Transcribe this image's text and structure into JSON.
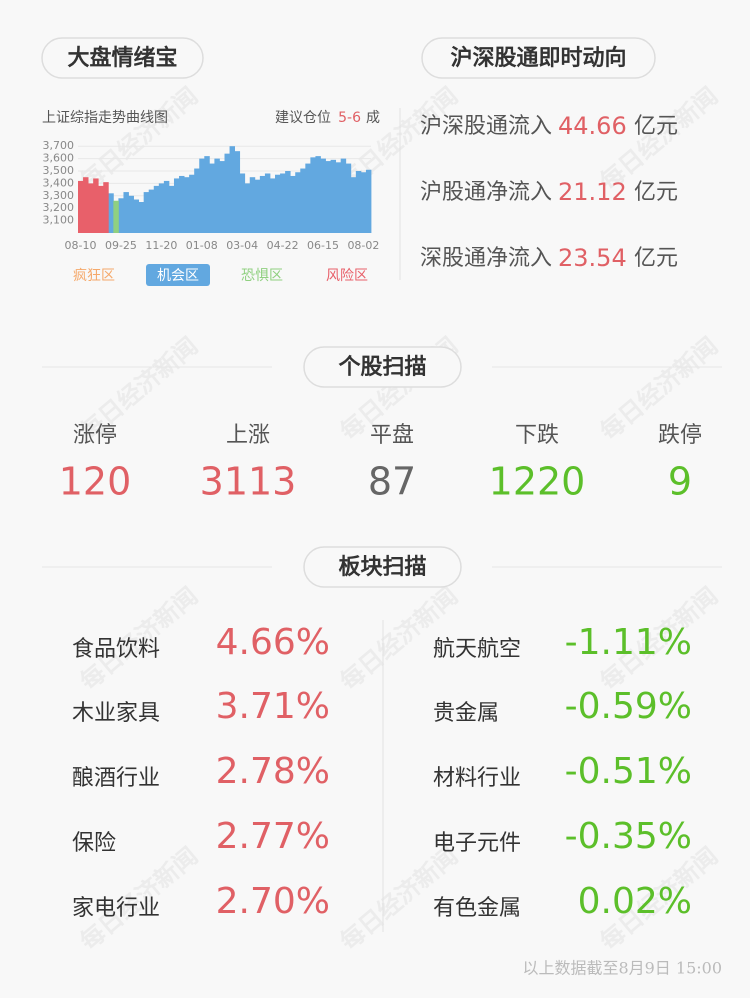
{
  "tabs": {
    "left": "大盘情绪宝",
    "right": "沪深股通即时动向"
  },
  "chart_data": {
    "type": "bar",
    "title": "上证综指走势曲线图",
    "suggestion": {
      "label": "建议仓位",
      "value": "5-6",
      "unit": "成"
    },
    "categories": [
      "08-10",
      null,
      null,
      null,
      null,
      null,
      null,
      null,
      "09-25",
      null,
      null,
      null,
      null,
      null,
      null,
      null,
      "11-20",
      null,
      null,
      null,
      null,
      null,
      null,
      null,
      "01-08",
      null,
      null,
      null,
      null,
      null,
      null,
      null,
      "03-04",
      null,
      null,
      null,
      null,
      null,
      null,
      null,
      "04-22",
      null,
      null,
      null,
      null,
      null,
      null,
      null,
      "06-15",
      null,
      null,
      null,
      null,
      null,
      null,
      null,
      "08-02",
      null
    ],
    "series": [
      {
        "name": "疯狂区",
        "color": "#f5a96b",
        "values": [
          null,
          null,
          null,
          null,
          null,
          null,
          null,
          null,
          null,
          null,
          null,
          null,
          null,
          null,
          null,
          null,
          null,
          null,
          null,
          null,
          null,
          null,
          null,
          null,
          null,
          null,
          null,
          null,
          null,
          null,
          null,
          null,
          null,
          null,
          null,
          null,
          null,
          null,
          null,
          null,
          null,
          null,
          null,
          null,
          null,
          null,
          null,
          null,
          null,
          null,
          null,
          null,
          null,
          null,
          null,
          null,
          null,
          null
        ]
      },
      {
        "name": "机会区",
        "color": "#62a8e0",
        "highlight": true,
        "values": [
          null,
          null,
          null,
          null,
          null,
          null,
          3320,
          null,
          3280,
          3330,
          3300,
          3270,
          3250,
          3330,
          3350,
          3380,
          3400,
          3420,
          3380,
          3440,
          3460,
          3450,
          3470,
          3520,
          3600,
          3620,
          3560,
          3600,
          3580,
          3640,
          3700,
          3660,
          3480,
          3400,
          3450,
          3430,
          3460,
          3480,
          3440,
          3470,
          3480,
          3500,
          3460,
          3490,
          3520,
          3560,
          3610,
          3620,
          3600,
          3580,
          3590,
          3570,
          3600,
          3560,
          3450,
          3500,
          3490,
          3510
        ]
      },
      {
        "name": "恐惧区",
        "color": "#90d080",
        "values": [
          null,
          null,
          null,
          null,
          null,
          null,
          null,
          3260,
          null,
          null,
          null,
          null,
          null,
          null,
          null,
          null,
          null,
          null,
          null,
          null,
          null,
          null,
          null,
          null,
          null,
          null,
          null,
          null,
          null,
          null,
          null,
          null,
          null,
          null,
          null,
          null,
          null,
          null,
          null,
          null,
          null,
          null,
          null,
          null,
          null,
          null,
          null,
          null,
          null,
          null,
          null,
          null,
          null,
          null,
          null,
          null,
          null,
          null
        ]
      },
      {
        "name": "风险区",
        "color": "#e8606a",
        "values": [
          3420,
          3450,
          3400,
          3440,
          3380,
          3410,
          null,
          null,
          null,
          null,
          null,
          null,
          null,
          null,
          null,
          null,
          null,
          null,
          null,
          null,
          null,
          null,
          null,
          null,
          null,
          null,
          null,
          null,
          null,
          null,
          null,
          null,
          null,
          null,
          null,
          null,
          null,
          null,
          null,
          null,
          null,
          null,
          null,
          null,
          null,
          null,
          null,
          null,
          null,
          null,
          null,
          null,
          null,
          null,
          null,
          null,
          null,
          null
        ]
      }
    ],
    "ylim": [
      3000,
      3750
    ],
    "yticks": [
      {
        "value": 3100,
        "label": "3,100"
      },
      {
        "value": 3200,
        "label": "3,200"
      },
      {
        "value": 3300,
        "label": "3,300"
      },
      {
        "value": 3400,
        "label": "3,400"
      },
      {
        "value": 3500,
        "label": "3,500"
      },
      {
        "value": 3600,
        "label": "3,600"
      },
      {
        "value": 3700,
        "label": "3,700"
      }
    ],
    "grid": true
  },
  "flows": [
    {
      "label": "沪深股通流入",
      "value": 44.66,
      "unit": "亿元"
    },
    {
      "label": "沪股通净流入",
      "value": 21.12,
      "unit": "亿元"
    },
    {
      "label": "深股通净流入",
      "value": 23.54,
      "unit": "亿元"
    }
  ],
  "stocks": {
    "title": "个股扫描",
    "items": [
      {
        "label": "涨停",
        "value": 120,
        "color": "#e06065"
      },
      {
        "label": "上涨",
        "value": 3113,
        "color": "#e06065"
      },
      {
        "label": "平盘",
        "value": 87,
        "color": "#666666"
      },
      {
        "label": "下跌",
        "value": 1220,
        "color": "#5cbf2a"
      },
      {
        "label": "跌停",
        "value": 9,
        "color": "#5cbf2a"
      }
    ]
  },
  "sectors": {
    "title": "板块扫描",
    "left": [
      {
        "name": "食品饮料",
        "value": "4.66%"
      },
      {
        "name": "木业家具",
        "value": "3.71%"
      },
      {
        "name": "酿酒行业",
        "value": "2.78%"
      },
      {
        "name": "保险",
        "value": "2.77%"
      },
      {
        "name": "家电行业",
        "value": "2.70%"
      }
    ],
    "right": [
      {
        "name": "航天航空",
        "value": "-1.11%"
      },
      {
        "name": "贵金属",
        "value": "-0.59%"
      },
      {
        "name": "材料行业",
        "value": "-0.51%"
      },
      {
        "name": "电子元件",
        "value": "-0.35%"
      },
      {
        "name": "有色金属",
        "value": "0.02%"
      }
    ],
    "up_color": "#e06065",
    "down_color": "#5cbf2a"
  },
  "footnote": "以上数据截至8月9日 15:00",
  "watermark": "每日经济新闻"
}
